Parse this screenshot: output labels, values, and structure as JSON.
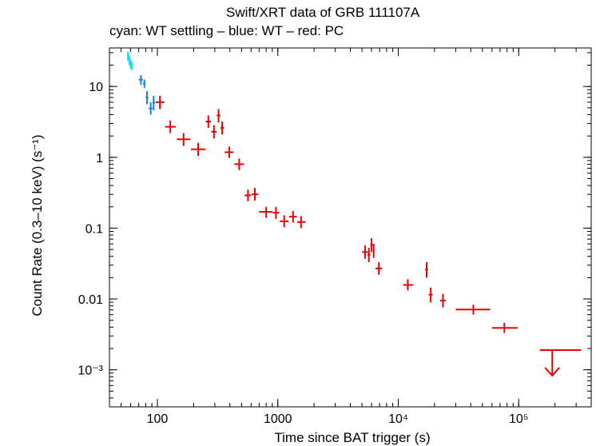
{
  "chart_data": {
    "type": "scatter",
    "title": "Swift/XRT data of GRB 111107A",
    "subtitle": "cyan: WT settling – blue: WT – red: PC",
    "xlabel": "Time since BAT trigger (s)",
    "ylabel": "Count Rate (0.3–10 keV) (s⁻¹)",
    "xscale": "log",
    "yscale": "log",
    "xlim": [
      40,
      400000
    ],
    "ylim": [
      0.0003,
      35
    ],
    "x_major_ticks": [
      {
        "value": 100,
        "label": "100"
      },
      {
        "value": 1000,
        "label": "1000"
      },
      {
        "value": 10000,
        "label": "10⁴"
      },
      {
        "value": 100000,
        "label": "10⁵"
      }
    ],
    "y_major_ticks": [
      {
        "value": 10,
        "label": "10"
      },
      {
        "value": 1,
        "label": "1"
      },
      {
        "value": 0.1,
        "label": "0.1"
      },
      {
        "value": 0.01,
        "label": "0.01"
      },
      {
        "value": 0.001,
        "label": "10⁻³"
      }
    ],
    "series": [
      {
        "name": "WT settling",
        "color": "#00e5ee",
        "points": [
          {
            "x": 57,
            "xlo": 56,
            "xhi": 58,
            "y": 27,
            "ylo": 23,
            "yhi": 31
          },
          {
            "x": 58.5,
            "xlo": 58,
            "xhi": 59,
            "y": 23,
            "ylo": 20,
            "yhi": 27
          },
          {
            "x": 60,
            "xlo": 59.5,
            "xhi": 60.5,
            "y": 21,
            "ylo": 18,
            "yhi": 24
          },
          {
            "x": 61.5,
            "xlo": 61,
            "xhi": 62,
            "y": 19.5,
            "ylo": 17,
            "yhi": 22
          }
        ]
      },
      {
        "name": "WT",
        "color": "#1a7fe0",
        "points": [
          {
            "x": 73,
            "xlo": 70,
            "xhi": 76,
            "y": 12.5,
            "ylo": 10.5,
            "yhi": 14.5
          },
          {
            "x": 78,
            "xlo": 76,
            "xhi": 80,
            "y": 11,
            "ylo": 9.5,
            "yhi": 12.5
          },
          {
            "x": 82,
            "xlo": 80,
            "xhi": 84,
            "y": 7,
            "ylo": 5.6,
            "yhi": 8.6
          },
          {
            "x": 88,
            "xlo": 85,
            "xhi": 91,
            "y": 4.9,
            "ylo": 4.0,
            "yhi": 6.0
          },
          {
            "x": 93,
            "xlo": 91,
            "xhi": 96,
            "y": 5.9,
            "ylo": 4.6,
            "yhi": 7.4
          }
        ]
      },
      {
        "name": "PC",
        "color": "#ee0000",
        "points": [
          {
            "x": 105,
            "xlo": 97,
            "xhi": 114,
            "y": 6.0,
            "ylo": 4.8,
            "yhi": 7.4
          },
          {
            "x": 128,
            "xlo": 116,
            "xhi": 142,
            "y": 2.7,
            "ylo": 2.2,
            "yhi": 3.3
          },
          {
            "x": 165,
            "xlo": 145,
            "xhi": 188,
            "y": 1.8,
            "ylo": 1.45,
            "yhi": 2.2
          },
          {
            "x": 218,
            "xlo": 190,
            "xhi": 250,
            "y": 1.3,
            "ylo": 1.05,
            "yhi": 1.6
          },
          {
            "x": 265,
            "xlo": 252,
            "xhi": 279,
            "y": 3.2,
            "ylo": 2.6,
            "yhi": 3.9
          },
          {
            "x": 295,
            "xlo": 280,
            "xhi": 310,
            "y": 2.3,
            "ylo": 1.85,
            "yhi": 2.85
          },
          {
            "x": 322,
            "xlo": 311,
            "xhi": 333,
            "y": 3.9,
            "ylo": 3.1,
            "yhi": 4.8
          },
          {
            "x": 345,
            "xlo": 334,
            "xhi": 358,
            "y": 2.6,
            "ylo": 2.1,
            "yhi": 3.2
          },
          {
            "x": 395,
            "xlo": 362,
            "xhi": 430,
            "y": 1.18,
            "ylo": 0.98,
            "yhi": 1.42
          },
          {
            "x": 478,
            "xlo": 435,
            "xhi": 525,
            "y": 0.8,
            "ylo": 0.66,
            "yhi": 0.96
          },
          {
            "x": 565,
            "xlo": 530,
            "xhi": 600,
            "y": 0.29,
            "ylo": 0.24,
            "yhi": 0.35
          },
          {
            "x": 645,
            "xlo": 605,
            "xhi": 690,
            "y": 0.3,
            "ylo": 0.245,
            "yhi": 0.37
          },
          {
            "x": 800,
            "xlo": 700,
            "xhi": 905,
            "y": 0.17,
            "ylo": 0.14,
            "yhi": 0.2
          },
          {
            "x": 965,
            "xlo": 910,
            "xhi": 1030,
            "y": 0.165,
            "ylo": 0.135,
            "yhi": 0.2
          },
          {
            "x": 1130,
            "xlo": 1040,
            "xhi": 1230,
            "y": 0.125,
            "ylo": 0.103,
            "yhi": 0.152
          },
          {
            "x": 1340,
            "xlo": 1240,
            "xhi": 1440,
            "y": 0.145,
            "ylo": 0.12,
            "yhi": 0.175
          },
          {
            "x": 1560,
            "xlo": 1450,
            "xhi": 1700,
            "y": 0.122,
            "ylo": 0.1,
            "yhi": 0.148
          },
          {
            "x": 5300,
            "xlo": 5000,
            "xhi": 5600,
            "y": 0.046,
            "ylo": 0.037,
            "yhi": 0.057
          },
          {
            "x": 5700,
            "xlo": 5550,
            "xhi": 5850,
            "y": 0.042,
            "ylo": 0.033,
            "yhi": 0.053
          },
          {
            "x": 6000,
            "xlo": 5850,
            "xhi": 6150,
            "y": 0.058,
            "ylo": 0.046,
            "yhi": 0.072
          },
          {
            "x": 6250,
            "xlo": 6150,
            "xhi": 6350,
            "y": 0.048,
            "ylo": 0.038,
            "yhi": 0.06
          },
          {
            "x": 6900,
            "xlo": 6450,
            "xhi": 7350,
            "y": 0.027,
            "ylo": 0.022,
            "yhi": 0.033
          },
          {
            "x": 12000,
            "xlo": 11000,
            "xhi": 13300,
            "y": 0.0158,
            "ylo": 0.0132,
            "yhi": 0.019
          },
          {
            "x": 17200,
            "xlo": 16700,
            "xhi": 17700,
            "y": 0.026,
            "ylo": 0.02,
            "yhi": 0.033
          },
          {
            "x": 18600,
            "xlo": 17900,
            "xhi": 19300,
            "y": 0.0115,
            "ylo": 0.009,
            "yhi": 0.0145
          },
          {
            "x": 23500,
            "xlo": 22300,
            "xhi": 24800,
            "y": 0.0095,
            "ylo": 0.0076,
            "yhi": 0.0118
          },
          {
            "x": 42000,
            "xlo": 30000,
            "xhi": 58000,
            "y": 0.0071,
            "ylo": 0.006,
            "yhi": 0.0083
          },
          {
            "x": 76000,
            "xlo": 60000,
            "xhi": 98000,
            "y": 0.0039,
            "ylo": 0.0033,
            "yhi": 0.0046
          }
        ],
        "upper_limits": [
          {
            "x": 190000,
            "xlo": 150000,
            "xhi": 330000,
            "y": 0.0019
          }
        ]
      }
    ]
  }
}
